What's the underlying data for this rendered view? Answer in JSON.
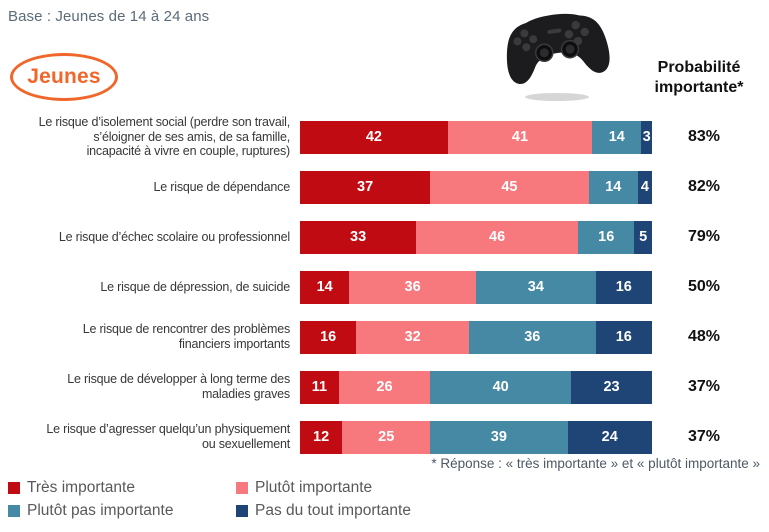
{
  "header": {
    "base_label": "Base : Jeunes de 14 à 24 ans",
    "group_badge": "Jeunes",
    "prob_title_line1": "Probabilité",
    "prob_title_line2": "importante*"
  },
  "footnote": "* Réponse : « très importante » et « plutôt importante »",
  "colors": {
    "tres_importante": "#c00b12",
    "plutot_importante": "#f8797d",
    "plutot_pas_importante": "#4689a4",
    "pas_du_tout_importante": "#1f4577",
    "accent_orange": "#f1662a",
    "label_text": "#373737",
    "legend_text": "#595959"
  },
  "icons": {
    "controller": "game-controller-icon"
  },
  "chart_data": {
    "type": "bar",
    "orientation": "horizontal",
    "stacked": true,
    "value_unit": "%",
    "xlim": [
      0,
      100
    ],
    "grid": false,
    "legend_position": "bottom-left",
    "data_labels": "inside-white-bold",
    "categories": [
      "Le risque d’isolement social (perdre son travail,\ns’éloigner de ses amis, de sa famille,\nincapacité à vivre en couple, ruptures)",
      "Le risque de dépendance",
      "Le risque d’échec scolaire ou professionnel",
      "Le risque de dépression, de suicide",
      "Le risque de rencontrer des problèmes\nfinanciers importants",
      "Le risque de développer à long terme des\nmaladies graves",
      "Le risque d’agresser quelqu’un physiquement\nou sexuellement"
    ],
    "series": [
      {
        "name": "Très importante",
        "color": "#c00b12",
        "values": [
          42,
          37,
          33,
          14,
          16,
          11,
          12
        ]
      },
      {
        "name": "Plutôt importante",
        "color": "#f8797d",
        "values": [
          41,
          45,
          46,
          36,
          32,
          26,
          25
        ]
      },
      {
        "name": "Plutôt pas importante",
        "color": "#4689a4",
        "values": [
          14,
          14,
          16,
          34,
          36,
          40,
          39
        ]
      },
      {
        "name": "Pas du tout importante",
        "color": "#1f4577",
        "values": [
          3,
          4,
          5,
          16,
          16,
          23,
          24
        ]
      }
    ],
    "probability_important_column": {
      "title": "Probabilité importante*",
      "values": [
        "83%",
        "82%",
        "79%",
        "50%",
        "48%",
        "37%",
        "37%"
      ]
    }
  }
}
